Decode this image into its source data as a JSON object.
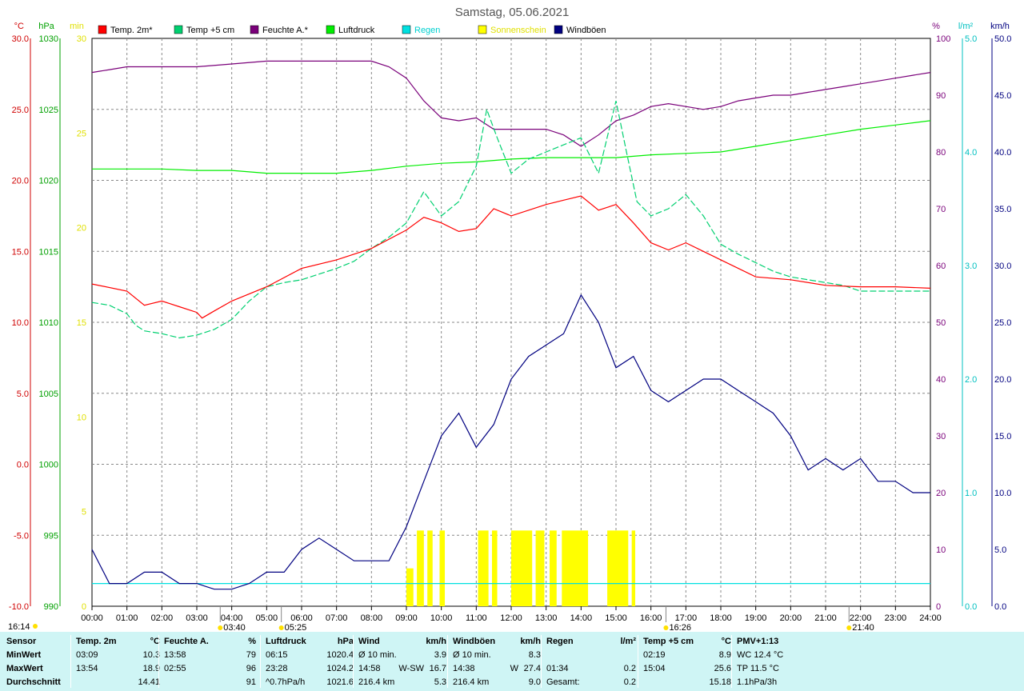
{
  "title": "Samstag, 05.06.2021",
  "colors": {
    "temp2m": "#ff0000",
    "temp5cm": "#00d070",
    "humidity": "#7a007a",
    "pressure": "#00ee00",
    "rain": "#00e0e0",
    "sun": "#ffff00",
    "gusts": "#000080",
    "stats_bg": "#cff5f5"
  },
  "axis_units": {
    "temp": "°C",
    "pressure": "hPa",
    "sun": "min",
    "humidity": "%",
    "rain": "l/m²",
    "wind": "km/h"
  },
  "sun_markers": [
    {
      "label": "03:40",
      "time": 3.67
    },
    {
      "label": "05:25",
      "time": 5.42
    },
    {
      "label": "16:26",
      "time": 16.43
    },
    {
      "label": "21:40",
      "time": 21.67
    }
  ],
  "corner_time": "16:14",
  "chart_data": {
    "type": "line",
    "x_range": [
      0,
      24
    ],
    "x_ticks": [
      "00:00",
      "01:00",
      "02:00",
      "03:00",
      "04:00",
      "05:00",
      "06:00",
      "07:00",
      "08:00",
      "09:00",
      "10:00",
      "11:00",
      "12:00",
      "13:00",
      "14:00",
      "15:00",
      "16:00",
      "17:00",
      "18:00",
      "19:00",
      "20:00",
      "21:00",
      "22:00",
      "23:00",
      "24:00"
    ],
    "axes": {
      "temp": {
        "range": [
          -10,
          30
        ],
        "ticks": [
          "30.0",
          "25.0",
          "20.0",
          "15.0",
          "10.0",
          "5.0",
          "0.0",
          "-5.0",
          "-10.0"
        ]
      },
      "pressure": {
        "range": [
          990,
          1030
        ],
        "ticks": [
          "1030",
          "1025",
          "1020",
          "1015",
          "1010",
          "1005",
          "1000",
          "995",
          "990"
        ]
      },
      "sun": {
        "range": [
          0,
          30
        ],
        "ticks": [
          "30",
          "25",
          "20",
          "15",
          "10",
          "5",
          "0"
        ]
      },
      "humidity": {
        "range": [
          0,
          100
        ],
        "ticks": [
          "100",
          "90",
          "80",
          "70",
          "60",
          "50",
          "40",
          "30",
          "20",
          "10",
          "0"
        ]
      },
      "rain": {
        "range": [
          0,
          5
        ],
        "ticks": [
          "5.0",
          "4.0",
          "3.0",
          "2.0",
          "1.0",
          "0.0"
        ]
      },
      "wind": {
        "range": [
          0,
          50
        ],
        "ticks": [
          "50.0",
          "45.0",
          "40.0",
          "35.0",
          "30.0",
          "25.0",
          "20.0",
          "15.0",
          "10.0",
          "5.0",
          "0.0"
        ]
      }
    },
    "grid": true,
    "legend_position": "top",
    "series": [
      {
        "name": "Temp. 2m*",
        "key": "temp2m",
        "axis": "temp",
        "x": [
          0,
          1,
          1.5,
          2,
          2.5,
          3,
          3.15,
          3.5,
          4,
          5,
          6,
          7,
          8,
          9,
          9.5,
          10,
          10.5,
          11,
          11.5,
          12,
          12.5,
          13,
          13.5,
          14,
          14.5,
          15,
          15.5,
          16,
          16.5,
          17,
          17.5,
          18,
          19,
          20,
          21,
          22,
          23,
          24
        ],
        "y": [
          12.7,
          12.2,
          11.2,
          11.5,
          11.1,
          10.7,
          10.3,
          10.8,
          11.5,
          12.5,
          13.8,
          14.4,
          15.2,
          16.5,
          17.4,
          17.0,
          16.4,
          16.6,
          18.0,
          17.5,
          17.9,
          18.3,
          18.6,
          18.9,
          17.9,
          18.3,
          17.0,
          15.6,
          15.1,
          15.6,
          15.0,
          14.4,
          13.2,
          13.0,
          12.6,
          12.5,
          12.5,
          12.4
        ]
      },
      {
        "name": "Temp +5 cm",
        "key": "temp5cm",
        "axis": "temp",
        "x": [
          0,
          0.5,
          1,
          1.25,
          1.5,
          2,
          2.5,
          3,
          3.5,
          4,
          4.5,
          5,
          5.5,
          6,
          6.5,
          7,
          7.5,
          8,
          8.5,
          9,
          9.5,
          10,
          10.5,
          11,
          11.3,
          11.6,
          12,
          12.5,
          13,
          13.5,
          14,
          14.5,
          15,
          15.3,
          15.6,
          16,
          16.5,
          17,
          17.5,
          18,
          18.5,
          19,
          19.5,
          20,
          20.5,
          21,
          21.5,
          22,
          22.5,
          23,
          23.5,
          24
        ],
        "y": [
          11.4,
          11.2,
          10.6,
          9.8,
          9.4,
          9.2,
          8.9,
          9.1,
          9.5,
          10.2,
          11.5,
          12.5,
          12.8,
          13.0,
          13.4,
          13.8,
          14.3,
          15.2,
          16.0,
          17.0,
          19.2,
          17.5,
          18.5,
          21.0,
          25.0,
          23.0,
          20.5,
          21.5,
          22.0,
          22.5,
          23.0,
          20.5,
          25.6,
          22.0,
          18.5,
          17.5,
          18.0,
          19.0,
          17.5,
          15.5,
          14.8,
          14.2,
          13.6,
          13.2,
          13.0,
          12.8,
          12.6,
          12.2,
          12.2,
          12.2,
          12.2,
          12.2
        ]
      },
      {
        "name": "Feuchte A.*",
        "key": "humidity",
        "axis": "humidity",
        "x": [
          0,
          0.5,
          1,
          2,
          3,
          4,
          5,
          6,
          7,
          8,
          8.5,
          9,
          9.5,
          10,
          10.5,
          11,
          11.5,
          12,
          12.5,
          13,
          13.5,
          14,
          14.5,
          15,
          15.5,
          16,
          16.5,
          17,
          17.5,
          18,
          18.5,
          19,
          19.5,
          20,
          20.5,
          21,
          21.5,
          22,
          22.5,
          23,
          23.5,
          24
        ],
        "y": [
          94,
          94.5,
          95,
          95,
          95,
          95.5,
          96,
          96,
          96,
          96,
          95,
          93,
          89,
          86,
          85.5,
          86,
          84,
          84,
          84,
          84,
          83,
          81,
          83,
          85.5,
          86.5,
          88,
          88.5,
          88,
          87.5,
          88,
          89,
          89.5,
          90,
          90,
          90.5,
          91,
          91.5,
          92,
          92.5,
          93,
          93.5,
          94
        ]
      },
      {
        "name": "Luftdruck",
        "key": "pressure",
        "axis": "pressure",
        "x": [
          0,
          1,
          2,
          3,
          4,
          5,
          6,
          7,
          8,
          9,
          10,
          11,
          12,
          13,
          14,
          15,
          16,
          17,
          18,
          19,
          20,
          21,
          22,
          23,
          24
        ],
        "y": [
          1020.8,
          1020.8,
          1020.8,
          1020.7,
          1020.7,
          1020.5,
          1020.5,
          1020.5,
          1020.7,
          1021.0,
          1021.2,
          1021.3,
          1021.5,
          1021.6,
          1021.6,
          1021.6,
          1021.8,
          1021.9,
          1022.0,
          1022.4,
          1022.8,
          1023.2,
          1023.6,
          1023.9,
          1024.2
        ]
      },
      {
        "name": "Regen",
        "key": "rain",
        "axis": "rain",
        "x": [
          0,
          24
        ],
        "y": [
          0.2,
          0.2
        ]
      },
      {
        "name": "Sonnenschein",
        "key": "sun",
        "axis": "sun",
        "bars": [
          [
            9.0,
            9.2,
            2
          ],
          [
            9.3,
            9.5,
            4
          ],
          [
            9.6,
            9.75,
            4
          ],
          [
            9.95,
            10.1,
            4
          ],
          [
            11.05,
            11.35,
            4
          ],
          [
            11.45,
            11.6,
            4
          ],
          [
            12.0,
            12.6,
            4
          ],
          [
            12.7,
            12.95,
            4
          ],
          [
            13.1,
            13.3,
            4
          ],
          [
            13.45,
            14.2,
            4
          ],
          [
            14.75,
            15.35,
            4
          ],
          [
            15.45,
            15.55,
            4
          ]
        ]
      },
      {
        "name": "Windböen",
        "key": "gusts",
        "axis": "wind",
        "x": [
          0,
          0.5,
          1,
          1.5,
          2,
          2.5,
          3,
          3.5,
          4,
          4.5,
          5,
          5.5,
          6,
          6.5,
          7,
          7.5,
          8,
          8.5,
          9,
          9.5,
          10,
          10.5,
          11,
          11.5,
          12,
          12.5,
          13,
          13.5,
          14,
          14.5,
          15,
          15.5,
          16,
          16.5,
          17,
          17.5,
          18,
          18.5,
          19,
          19.5,
          20,
          20.5,
          21,
          21.5,
          22,
          22.5,
          23,
          23.5,
          24
        ],
        "y": [
          5,
          2,
          2,
          3,
          3,
          2,
          2,
          1.5,
          1.5,
          2,
          3,
          3,
          5,
          6,
          5,
          4,
          4,
          4,
          7,
          11,
          15,
          17,
          14,
          16,
          20,
          22,
          23,
          24,
          27.4,
          25,
          21,
          22,
          19,
          18,
          19,
          20,
          20,
          19,
          18,
          17,
          15,
          12,
          13,
          12,
          13,
          11,
          11,
          10,
          10
        ]
      }
    ]
  },
  "stats": {
    "columns": [
      {
        "header": "Sensor",
        "unit": "",
        "rows": [
          "MinWert",
          "MaxWert",
          "Durchschnitt"
        ]
      },
      {
        "header": "Temp. 2m",
        "unit": "°C",
        "rows": [
          [
            "03:09",
            "10.3"
          ],
          [
            "13:54",
            "18.9"
          ],
          [
            "",
            "14.41"
          ]
        ]
      },
      {
        "header": "Feuchte A.",
        "unit": "%",
        "rows": [
          [
            "13:58",
            "79"
          ],
          [
            "02:55",
            "96"
          ],
          [
            "",
            "91"
          ]
        ]
      },
      {
        "header": "Luftdruck",
        "unit": "hPa",
        "rows": [
          [
            "06:15",
            "1020.4"
          ],
          [
            "23:28",
            "1024.2"
          ],
          [
            "^0.7hPa/h",
            "1021.6"
          ]
        ]
      },
      {
        "header": "Wind",
        "unit": "km/h",
        "rows": [
          [
            "Ø 10 min.",
            "",
            "3.9"
          ],
          [
            "14:58",
            "W-SW",
            "16.7"
          ],
          [
            "216.4 km",
            "",
            "5.3"
          ]
        ]
      },
      {
        "header": "Windböen",
        "unit": "km/h",
        "rows": [
          [
            "Ø 10 min.",
            "",
            "8.3"
          ],
          [
            "14:38",
            "W",
            "27.4"
          ],
          [
            "216.4 km",
            "",
            "9.0"
          ]
        ]
      },
      {
        "header": "Regen",
        "unit": "l/m²",
        "rows": [
          [
            "",
            ""
          ],
          [
            "01:34",
            "0.2"
          ],
          [
            "Gesamt:",
            "0.2"
          ]
        ]
      },
      {
        "header": "Temp +5 cm",
        "unit": "°C",
        "rows": [
          [
            "02:19",
            "8.9"
          ],
          [
            "15:04",
            "25.6"
          ],
          [
            "",
            "15.18"
          ]
        ]
      },
      {
        "header": "PMV+1:13",
        "unit": "",
        "rows": [
          "WC 12.4 °C",
          "TP 11.5 °C",
          "1.1hPa/3h"
        ]
      }
    ]
  }
}
